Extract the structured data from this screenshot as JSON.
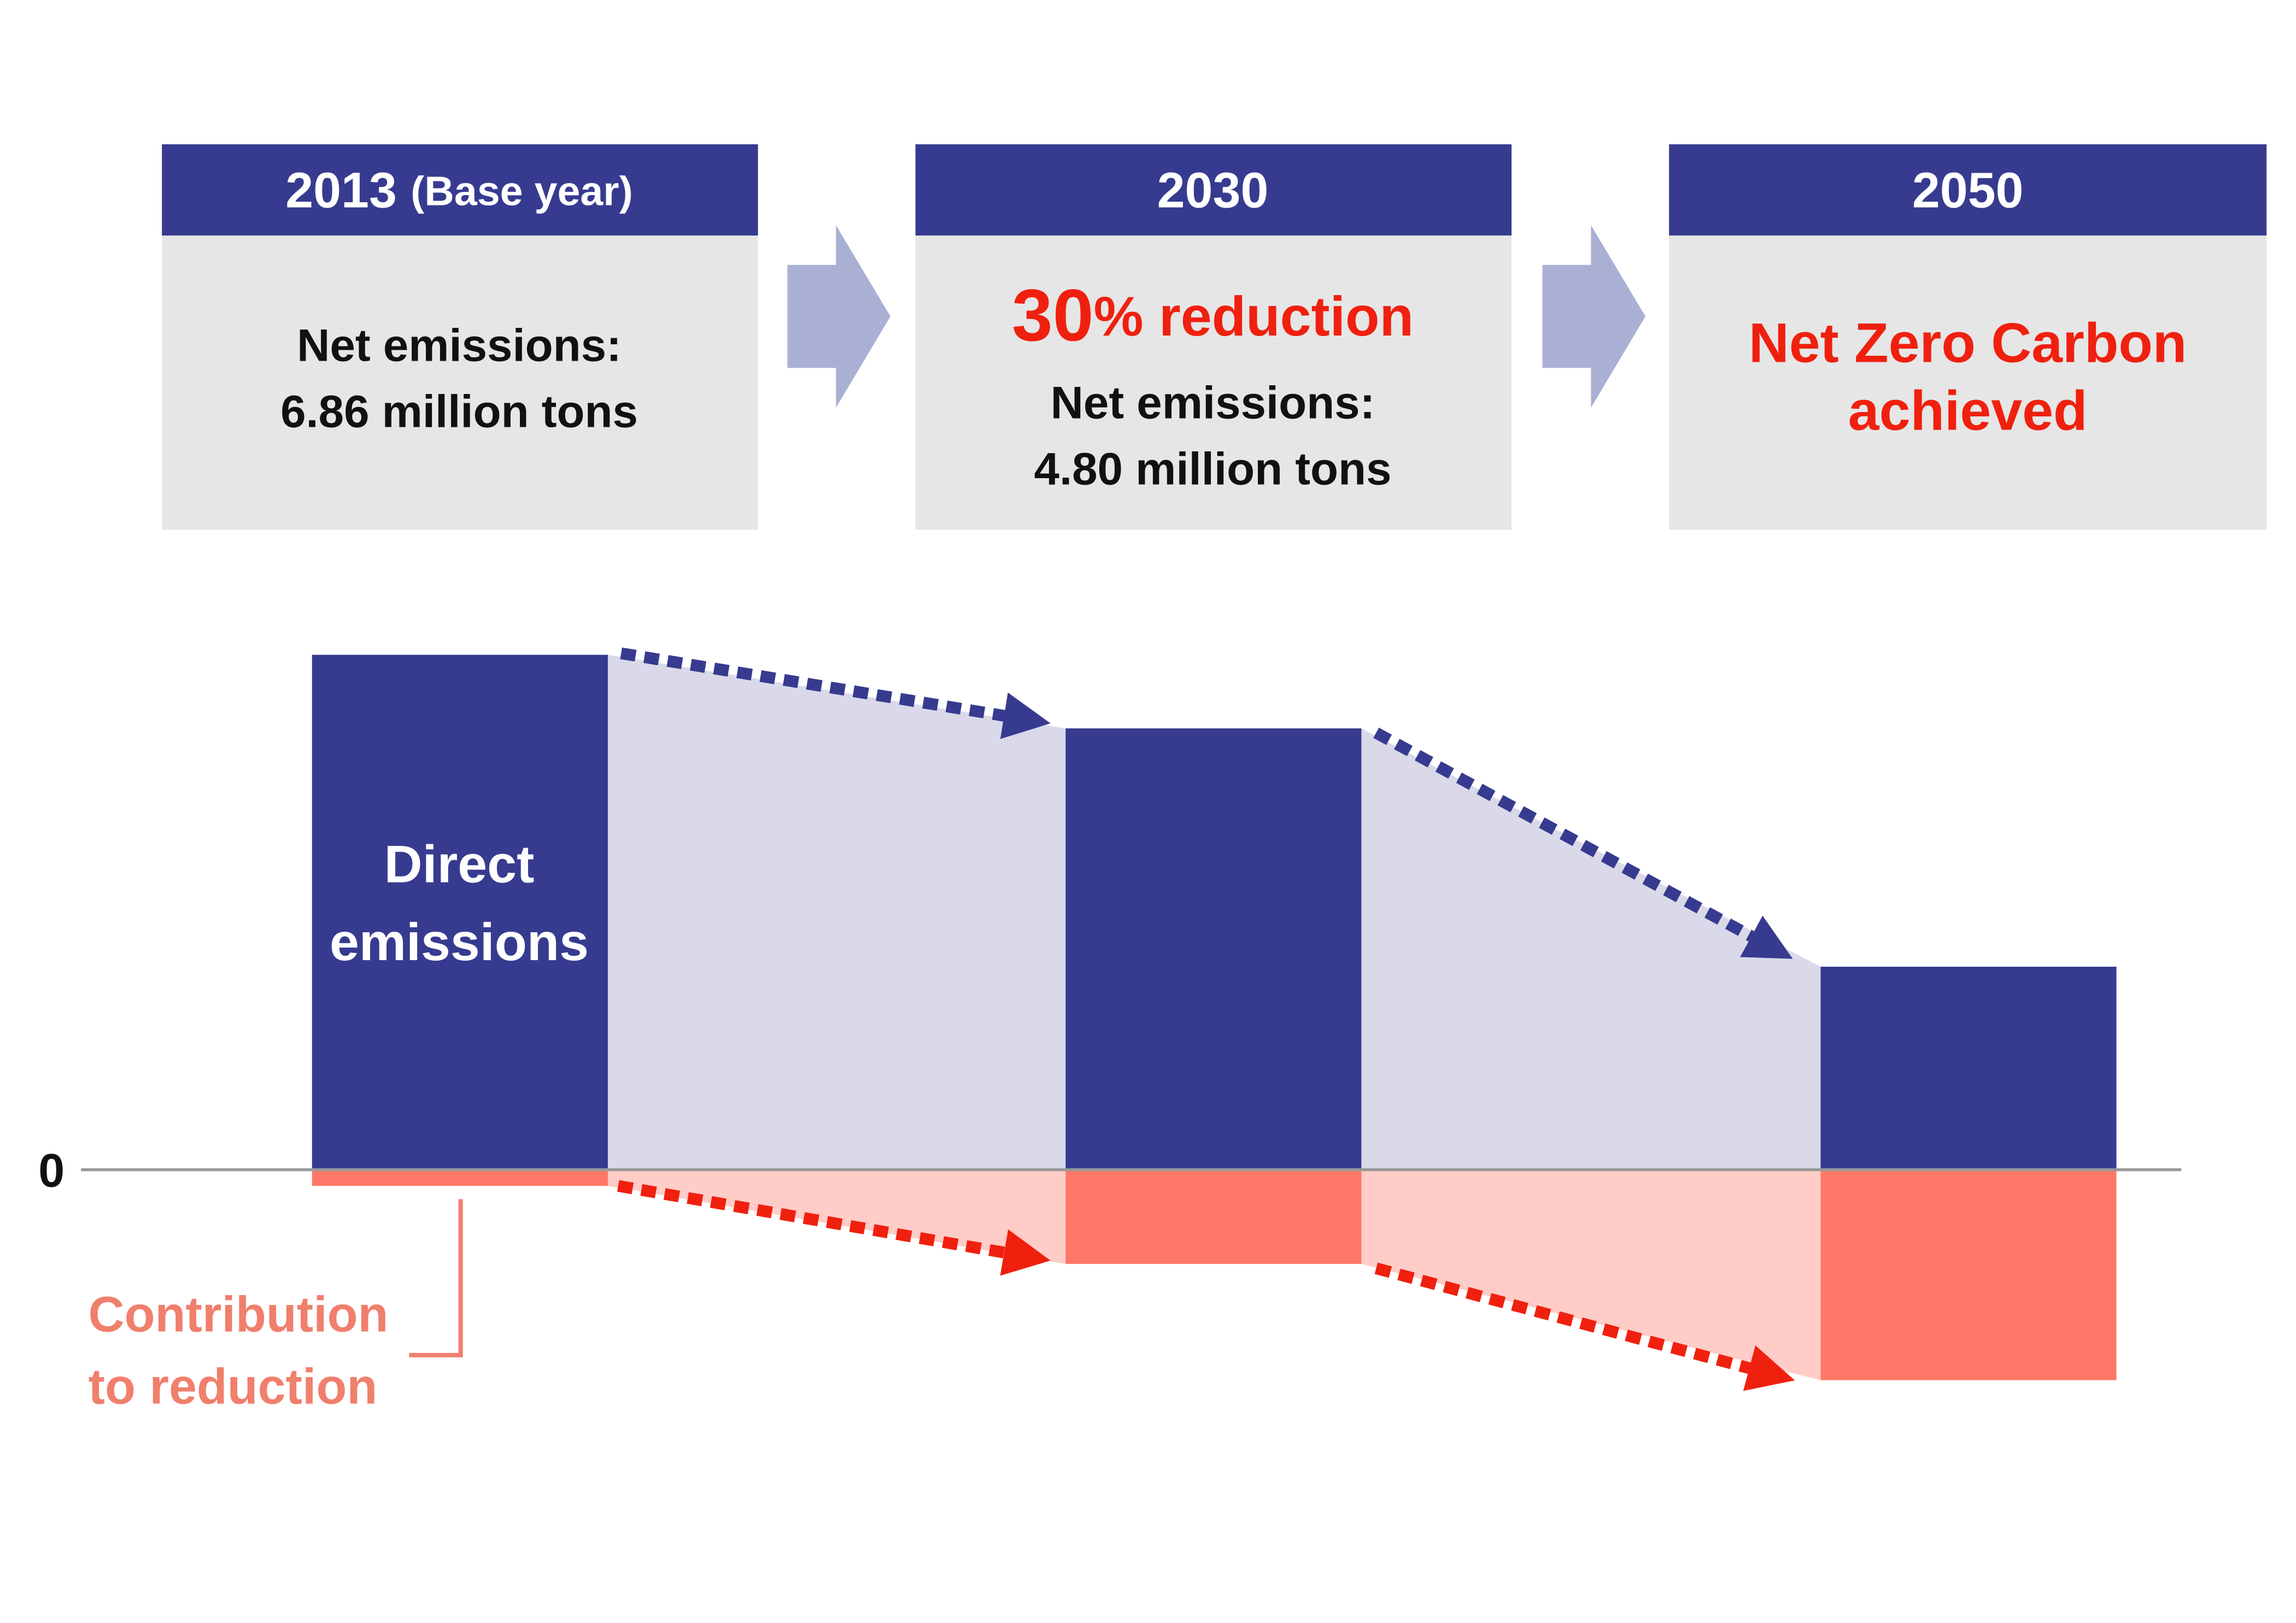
{
  "cards": [
    {
      "year": "2013",
      "year_note": "(Base year)",
      "lines": [
        "Net emissions:",
        "6.86 million tons"
      ]
    },
    {
      "year": "2030",
      "highlight_number": "30",
      "highlight_text": "% reduction",
      "lines": [
        "Net emissions:",
        "4.80 million tons"
      ]
    },
    {
      "year": "2050",
      "highlight_lines": [
        "Net Zero Carbon",
        "achieved"
      ]
    }
  ],
  "chart": {
    "zero_label": "0",
    "bar_label": [
      "Direct",
      "emissions"
    ],
    "reduction_label": [
      "Contribution",
      "to reduction"
    ]
  }
}
